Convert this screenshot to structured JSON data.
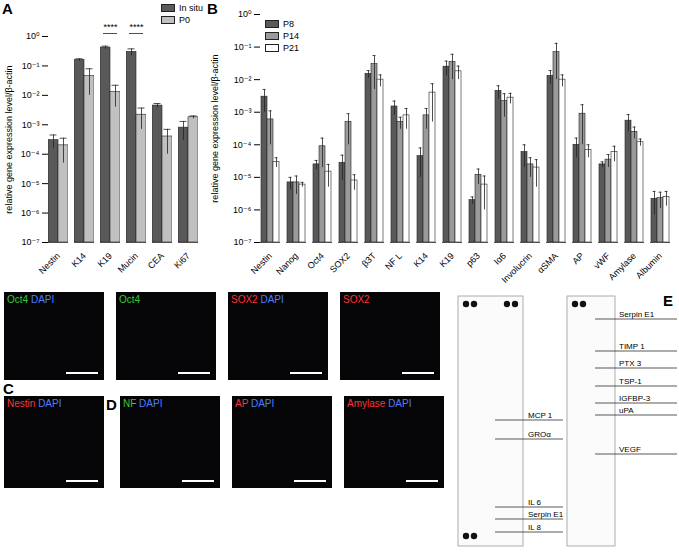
{
  "chart_data": [
    {
      "type": "bar",
      "title": "A",
      "categories": [
        "Nestin",
        "K14",
        "K19",
        "Mucin",
        "CEA",
        "Ki67"
      ],
      "ylabel": "relative gene expression level/β-actin",
      "series": [
        {
          "name": "In situ",
          "color": "#595959",
          "values": [
            0.0003,
            0.16,
            0.42,
            0.3,
            0.0045,
            0.0008
          ],
          "errors": [
            0.00015,
            0.015,
            0.05,
            0.08,
            0.0008,
            0.0005
          ]
        },
        {
          "name": "P0",
          "color": "#c0c0c0",
          "values": [
            0.0002,
            0.045,
            0.013,
            0.0022,
            0.0004,
            0.0018
          ],
          "errors": [
            0.00015,
            0.035,
            0.009,
            0.0015,
            0.0003,
            0.0002
          ]
        }
      ],
      "ylim": [
        1e-07,
        1
      ],
      "yticks": [
        {
          "value": 1e-07,
          "label": "10⁻⁷"
        },
        {
          "value": 1e-06,
          "label": "10⁻⁶"
        },
        {
          "value": 1e-05,
          "label": "10⁻⁵"
        },
        {
          "value": 0.0001,
          "label": "10⁻⁴"
        },
        {
          "value": 0.001,
          "label": "10⁻³"
        },
        {
          "value": 0.01,
          "label": "10⁻²"
        },
        {
          "value": 0.1,
          "label": "10⁻¹"
        },
        {
          "value": 1,
          "label": "10⁰"
        }
      ],
      "log": "y",
      "grid": false,
      "legend": "top-right",
      "annotations": [
        {
          "category": "K19",
          "text": "****"
        },
        {
          "category": "Mucin",
          "text": "****"
        }
      ]
    },
    {
      "type": "bar",
      "title": "B",
      "categories": [
        "Nestin",
        "Nanog",
        "Oct4",
        "SOX2",
        "β3T",
        "NF L",
        "K14",
        "K19",
        "p63",
        "Iα6",
        "Involucrin",
        "αSMA",
        "AP",
        "vWF",
        "Amylase",
        "Albumin"
      ],
      "ylabel": "relative gene expression level/β-actin",
      "series": [
        {
          "name": "P8",
          "color": "#595959",
          "values": [
            0.003,
            7e-06,
            2.5e-05,
            2.8e-05,
            0.015,
            0.0015,
            4.5e-05,
            0.025,
            2e-06,
            0.0045,
            6e-05,
            0.013,
            0.0001,
            2.5e-05,
            0.00055,
            2.2e-06
          ],
          "errors": [
            0.002,
            3e-06,
            8e-06,
            2e-05,
            0.004,
            0.0007,
            3.5e-05,
            0.012,
            5e-07,
            0.002,
            4e-05,
            0.006,
            6e-05,
            5e-06,
            0.0003,
            1.5e-06
          ]
        },
        {
          "name": "P14",
          "color": "#9a9a9a",
          "values": [
            0.0006,
            7e-06,
            9e-05,
            0.0005,
            0.03,
            0.0005,
            0.0008,
            0.035,
            1.2e-05,
            0.0022,
            2.5e-05,
            0.07,
            0.0009,
            3.5e-05,
            0.00025,
            2.3e-06
          ],
          "errors": [
            0.0005,
            4e-06,
            7e-05,
            0.0004,
            0.025,
            0.0002,
            0.0005,
            0.025,
            6e-06,
            0.0015,
            1.5e-05,
            0.06,
            0.0008,
            1.5e-05,
            0.0001,
            1.2e-06
          ]
        },
        {
          "name": "P21",
          "color": "#ffffff",
          "values": [
            3e-05,
            6e-06,
            1.5e-05,
            8e-06,
            0.01,
            0.0008,
            0.004,
            0.018,
            6e-06,
            0.0028,
            2e-05,
            0.01,
            7e-05,
            6e-05,
            0.00012,
            2.5e-06
          ],
          "errors": [
            1e-05,
            1e-06,
            1e-05,
            4e-06,
            0.004,
            0.0005,
            0.0035,
            0.008,
            5e-06,
            0.001,
            1.5e-05,
            0.004,
            3e-05,
            3e-05,
            3e-05,
            1.2e-06
          ]
        }
      ],
      "ylim": [
        1e-07,
        1
      ],
      "yticks": [
        {
          "value": 1e-07,
          "label": "10⁻⁷"
        },
        {
          "value": 1e-06,
          "label": "10⁻⁶"
        },
        {
          "value": 1e-05,
          "label": "10⁻⁵"
        },
        {
          "value": 0.0001,
          "label": "10⁻⁴"
        },
        {
          "value": 0.001,
          "label": "10⁻³"
        },
        {
          "value": 0.01,
          "label": "10⁻²"
        },
        {
          "value": 0.1,
          "label": "10⁻¹"
        },
        {
          "value": 1,
          "label": "10⁰"
        }
      ],
      "log": "y",
      "grid": false,
      "legend": "top-left"
    }
  ],
  "image_panels": {
    "C": {
      "title": "C",
      "panels": [
        [
          {
            "text": "Oct4",
            "color": "#33cc33"
          },
          {
            "text": "DAPI",
            "color": "#4f7dff"
          }
        ],
        [
          {
            "text": "Oct4",
            "color": "#33cc33"
          }
        ],
        [
          {
            "text": "SOX2",
            "color": "#ff3333"
          },
          {
            "text": "DAPI",
            "color": "#4f7dff"
          }
        ],
        [
          {
            "text": "SOX2",
            "color": "#ff3333"
          }
        ]
      ]
    },
    "D": {
      "title": "D",
      "panels": [
        [
          {
            "text": "Nestin",
            "color": "#ff3333"
          },
          {
            "text": "DAPI",
            "color": "#4f7dff"
          }
        ],
        [
          {
            "text": "NF",
            "color": "#33cc33"
          },
          {
            "text": "DAPI",
            "color": "#4f7dff"
          }
        ],
        [
          {
            "text": "AP",
            "color": "#ff3333"
          },
          {
            "text": "DAPI",
            "color": "#4f7dff"
          }
        ],
        [
          {
            "text": "Amylase",
            "color": "#ff3333"
          },
          {
            "text": "DAPI",
            "color": "#4f7dff"
          }
        ]
      ]
    },
    "E": {
      "title": "E",
      "left_labels": [
        "MCP 1",
        "GROα",
        "IL 6",
        "Serpin E1",
        "IL 8"
      ],
      "right_labels": [
        "Serpin E1",
        "TIMP 1",
        "PTX 3",
        "TSP-1",
        "IGFBP-3",
        "uPA",
        "VEGF"
      ]
    }
  }
}
